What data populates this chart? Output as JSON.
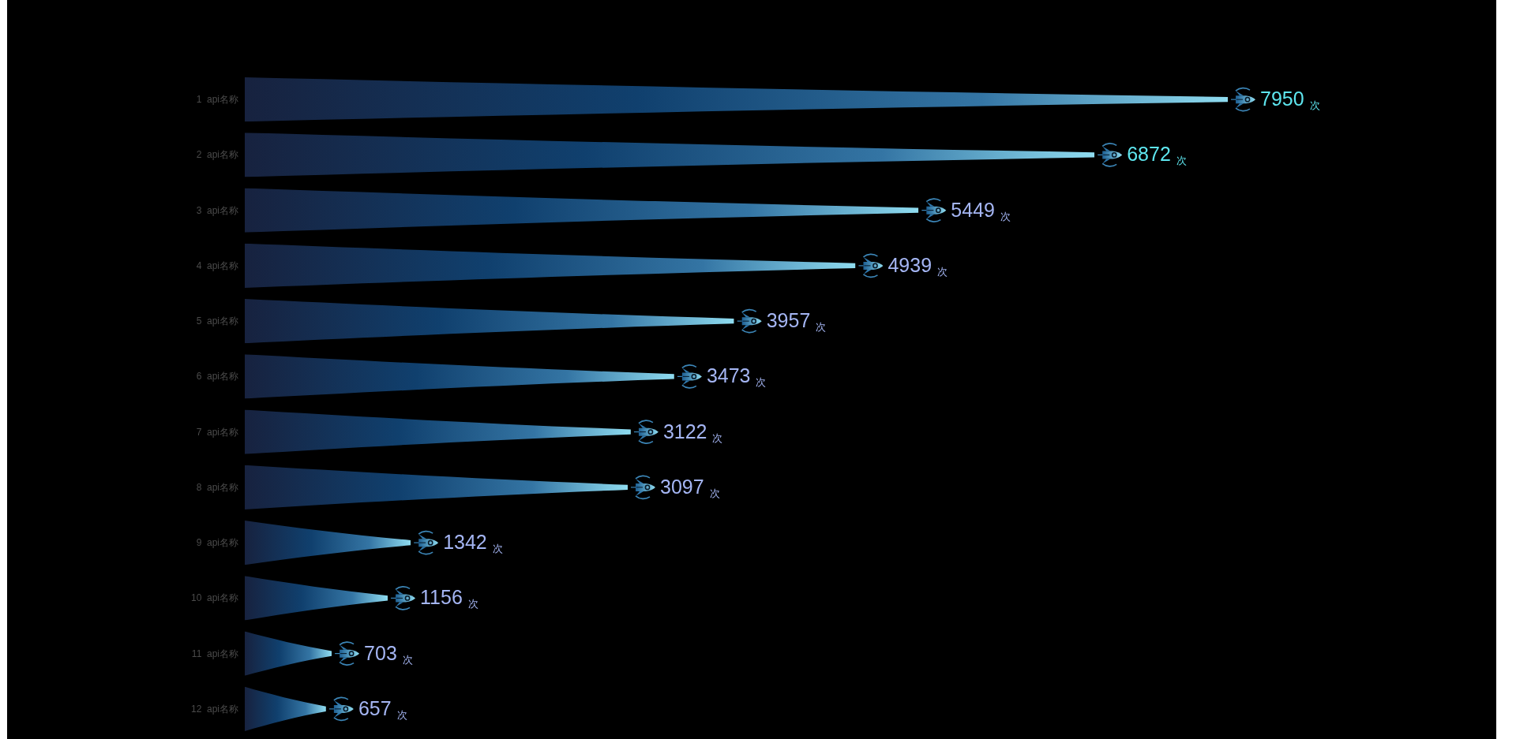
{
  "chart_data": {
    "type": "bar",
    "orientation": "horizontal",
    "categories": [
      "1  api名称",
      "2  api名称",
      "3  api名称",
      "4  api名称",
      "5  api名称",
      "6  api名称",
      "7  api名称",
      "8  api名称",
      "9  api名称",
      "10  api名称",
      "11  api名称",
      "12  api名称"
    ],
    "values": [
      7950,
      6872,
      5449,
      4939,
      3957,
      3473,
      3122,
      3097,
      1342,
      1156,
      703,
      657
    ],
    "color": "#10406e",
    "value_labels": [
      "7950 $_{次}$",
      "6872 $_{次}$",
      "5449 $_{次}$",
      "4939 $_{次}$",
      "3957 $_{次}$",
      "3473 $_{次}$",
      "3122 $_{次}$",
      "3097 $_{次}$",
      "1342 $_{次}$",
      "1156 $_{次}$",
      "703 $_{次}$",
      "657 $_{次}$"
    ]
  }
}
